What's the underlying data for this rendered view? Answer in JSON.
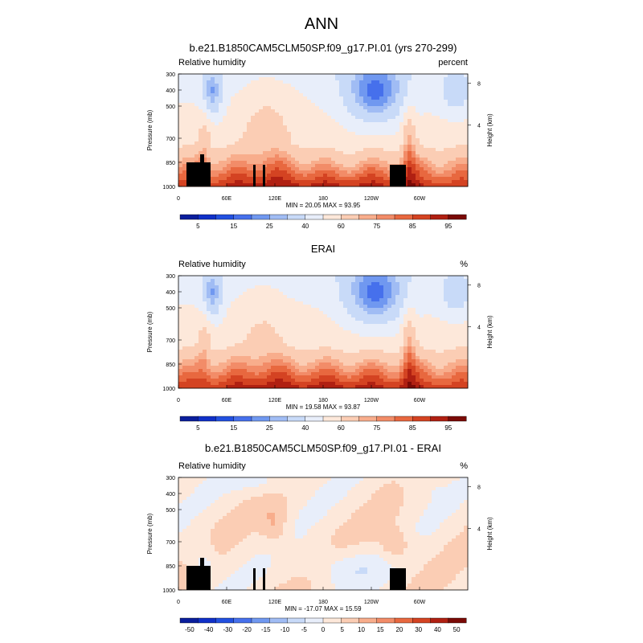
{
  "main_title": "ANN",
  "colors": {
    "seq_palette": [
      "#0a1e9c",
      "#1030c8",
      "#2250e0",
      "#4670ec",
      "#7098f0",
      "#a0bcf4",
      "#c8daf8",
      "#e8eefa",
      "#fde8da",
      "#fbcdb4",
      "#f8ad8c",
      "#f28c68",
      "#e8683f",
      "#d44322",
      "#b02012",
      "#7a0a06"
    ],
    "diff_palette": [
      "#0a1e9c",
      "#1030c8",
      "#2250e0",
      "#4670ec",
      "#7098f0",
      "#a0bcf4",
      "#c8daf8",
      "#e8eefa",
      "#fde8da",
      "#fbcdb4",
      "#f8ad8c",
      "#f28c68",
      "#e8683f",
      "#d44322",
      "#b02012",
      "#7a0a06"
    ]
  },
  "chart_data": [
    {
      "type": "heatmap",
      "id": "model",
      "title": "b.e21.B1850CAM5CLM50SP.f09_g17.PI.01 (yrs 270-299)",
      "left_label": "Relative humidity",
      "units": "percent",
      "ylabel": "Pressure (mb)",
      "ylabel_right": "Height (km)",
      "y_ticks": [
        "300",
        "400",
        "500",
        "700",
        "850",
        "1000"
      ],
      "y_tick_values": [
        300,
        400,
        500,
        700,
        850,
        1000
      ],
      "right_ticks": [
        "8",
        "4"
      ],
      "right_tick_values": [
        8,
        4
      ],
      "x_ticks": [
        "0",
        "60E",
        "120E",
        "180",
        "120W",
        "60W"
      ],
      "x_tick_values": [
        0,
        60,
        120,
        180,
        240,
        300
      ],
      "xlim": [
        0,
        360
      ],
      "ylim": [
        1000,
        300
      ],
      "stats": "MIN = 20.05  MAX = 93.95",
      "min": 20.05,
      "max": 93.95,
      "colorbar_labels": [
        "5",
        "15",
        "25",
        "40",
        "60",
        "75",
        "85",
        "95"
      ],
      "colorbar_levels": [
        5,
        10,
        15,
        20,
        25,
        30,
        40,
        50,
        60,
        70,
        75,
        80,
        85,
        90,
        95
      ],
      "palette": "seq",
      "mask": true
    },
    {
      "type": "heatmap",
      "id": "obs",
      "title": "ERAI",
      "left_label": "Relative humidity",
      "units": "%",
      "ylabel": "Pressure (mb)",
      "ylabel_right": "Height (km)",
      "y_ticks": [
        "300",
        "400",
        "500",
        "700",
        "850",
        "1000"
      ],
      "y_tick_values": [
        300,
        400,
        500,
        700,
        850,
        1000
      ],
      "right_ticks": [
        "8",
        "4"
      ],
      "right_tick_values": [
        8,
        4
      ],
      "x_ticks": [
        "0",
        "60E",
        "120E",
        "180",
        "120W",
        "60W"
      ],
      "x_tick_values": [
        0,
        60,
        120,
        180,
        240,
        300
      ],
      "xlim": [
        0,
        360
      ],
      "ylim": [
        1000,
        300
      ],
      "stats": "MIN = 19.58  MAX = 93.87",
      "min": 19.58,
      "max": 93.87,
      "colorbar_labels": [
        "5",
        "15",
        "25",
        "40",
        "60",
        "75",
        "85",
        "95"
      ],
      "colorbar_levels": [
        5,
        10,
        15,
        20,
        25,
        30,
        40,
        50,
        60,
        70,
        75,
        80,
        85,
        90,
        95
      ],
      "palette": "seq",
      "mask": false
    },
    {
      "type": "heatmap",
      "id": "diff",
      "title": "b.e21.B1850CAM5CLM50SP.f09_g17.PI.01 - ERAI",
      "left_label": "Relative humidity",
      "units": "%",
      "ylabel": "Pressure (mb)",
      "ylabel_right": "Height (km)",
      "y_ticks": [
        "300",
        "400",
        "500",
        "700",
        "850",
        "1000"
      ],
      "y_tick_values": [
        300,
        400,
        500,
        700,
        850,
        1000
      ],
      "right_ticks": [
        "8",
        "4"
      ],
      "right_tick_values": [
        8,
        4
      ],
      "x_ticks": [
        "0",
        "60E",
        "120E",
        "180",
        "120W",
        "60W"
      ],
      "x_tick_values": [
        0,
        60,
        120,
        180,
        240,
        300
      ],
      "xlim": [
        0,
        360
      ],
      "ylim": [
        1000,
        300
      ],
      "stats": "MIN = -17.07  MAX = 15.59",
      "min": -17.07,
      "max": 15.59,
      "colorbar_labels": [
        "-50",
        "-40",
        "-30",
        "-20",
        "-15",
        "-10",
        "-5",
        "0",
        "5",
        "10",
        "15",
        "20",
        "30",
        "40",
        "50"
      ],
      "colorbar_levels": [
        -50,
        -40,
        -30,
        -20,
        -15,
        -10,
        -5,
        0,
        5,
        10,
        15,
        20,
        30,
        40,
        50
      ],
      "palette": "diff",
      "mask": true
    }
  ]
}
